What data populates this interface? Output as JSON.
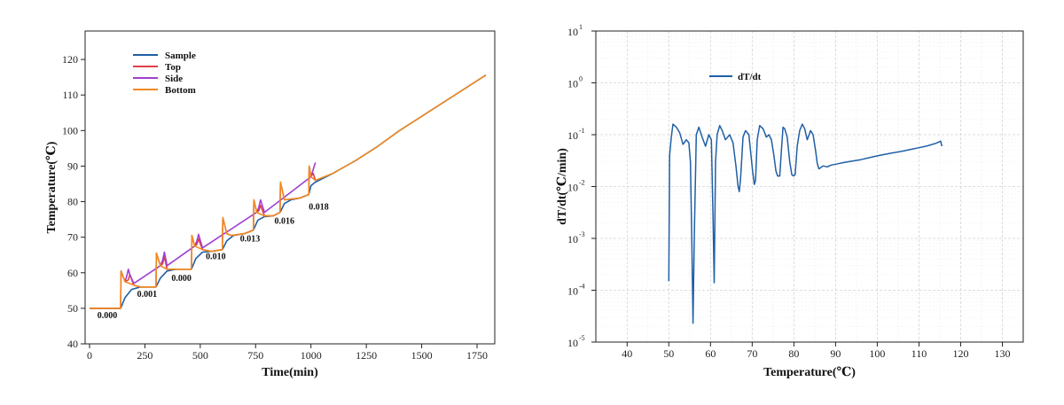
{
  "chart_data": [
    {
      "type": "line",
      "xlabel": "Time(min)",
      "ylabel": "Temperature(℃)",
      "xlim": [
        -20,
        1830
      ],
      "ylim": [
        40,
        128
      ],
      "xticks": [
        0,
        250,
        500,
        750,
        1000,
        1250,
        1500,
        1750
      ],
      "yticks": [
        40,
        50,
        60,
        70,
        80,
        90,
        100,
        110,
        120
      ],
      "grid": false,
      "legend": "top-left",
      "series": [
        {
          "name": "Sample",
          "color": "#1f5fa6",
          "x": [
            0,
            140,
            160,
            190,
            230,
            300,
            320,
            350,
            390,
            460,
            480,
            510,
            550,
            600,
            620,
            650,
            700,
            740,
            760,
            790,
            830,
            860,
            880,
            910,
            950,
            990,
            1000,
            1020,
            1100,
            1200,
            1300,
            1400,
            1500,
            1600,
            1700,
            1790
          ],
          "y": [
            50,
            50,
            53,
            55.3,
            56,
            56,
            58.5,
            60.5,
            61,
            61,
            64,
            65.8,
            66,
            66.5,
            69,
            70.5,
            71,
            72,
            74.8,
            75.8,
            76,
            77,
            79.5,
            80.5,
            81,
            82,
            84.5,
            85.5,
            88,
            91.5,
            95.5,
            100,
            104,
            108,
            112,
            115.6
          ]
        },
        {
          "name": "Top",
          "color": "#e0404a",
          "x": [
            0,
            140,
            142,
            160,
            175,
            182,
            200,
            230,
            300,
            302,
            320,
            330,
            338,
            350,
            390,
            460,
            462,
            475,
            485,
            492,
            510,
            550,
            600,
            602,
            620,
            640,
            700,
            740,
            742,
            755,
            765,
            772,
            790,
            830,
            860,
            862,
            880,
            950,
            990,
            992,
            1000,
            1010,
            1020
          ],
          "y": [
            50,
            50,
            60.5,
            57.5,
            58,
            59.5,
            56.5,
            56,
            56,
            65.5,
            62,
            62.5,
            64.5,
            61,
            61,
            61,
            70.5,
            67.5,
            68,
            69.5,
            66.5,
            66,
            66.5,
            75.5,
            71,
            70.5,
            71,
            72,
            80.5,
            77,
            77.5,
            79,
            76,
            76,
            77,
            85.5,
            80.5,
            81,
            82,
            90,
            87,
            88,
            86
          ]
        },
        {
          "name": "Side",
          "color": "#a040d0",
          "x": [
            160,
            168,
            175,
            182,
            200,
            320,
            330,
            338,
            350,
            475,
            485,
            492,
            510,
            755,
            765,
            772,
            790,
            1000,
            1010,
            1020
          ],
          "y": [
            57.5,
            59,
            61,
            59.5,
            57,
            62,
            63.5,
            65.8,
            62,
            67.5,
            69,
            70.8,
            67,
            77,
            78.5,
            80.5,
            77,
            87,
            89,
            91
          ]
        },
        {
          "name": "Bottom",
          "color": "#f08a20",
          "x": [
            0,
            140,
            142,
            160,
            200,
            230,
            300,
            302,
            320,
            350,
            390,
            460,
            462,
            475,
            510,
            550,
            600,
            602,
            620,
            640,
            700,
            740,
            742,
            755,
            790,
            830,
            860,
            862,
            880,
            950,
            990,
            992,
            1000,
            1020,
            1100,
            1200,
            1300,
            1400,
            1500,
            1600,
            1700,
            1790
          ],
          "y": [
            50,
            50,
            60.5,
            57.5,
            56.5,
            56,
            56,
            65.5,
            62,
            61,
            61,
            61,
            70.5,
            67.5,
            66.5,
            66,
            66.5,
            75.5,
            71,
            70.5,
            71,
            72,
            80.5,
            77,
            76,
            76,
            77,
            85.5,
            80.5,
            81,
            82,
            90,
            87,
            86,
            88,
            91.5,
            95.5,
            100,
            104,
            108,
            112,
            115.6
          ]
        }
      ],
      "annotations": [
        {
          "text": "0.000",
          "x": 80,
          "y": 48
        },
        {
          "text": "0.001",
          "x": 260,
          "y": 54
        },
        {
          "text": "0.000",
          "x": 415,
          "y": 58.5
        },
        {
          "text": "0.010",
          "x": 570,
          "y": 64.5
        },
        {
          "text": "0.013",
          "x": 725,
          "y": 69.5
        },
        {
          "text": "0.016",
          "x": 880,
          "y": 74.5
        },
        {
          "text": "0.018",
          "x": 1035,
          "y": 78.5
        }
      ]
    },
    {
      "type": "line",
      "xlabel": "Temperature(℃)",
      "ylabel": "dT/dt(℃/min)",
      "scale_y": "log",
      "xlim": [
        32.5,
        135
      ],
      "ylim": [
        1e-05,
        10
      ],
      "xticks": [
        40,
        50,
        60,
        70,
        80,
        90,
        100,
        110,
        120,
        130
      ],
      "yticks": [
        1e-05,
        0.0001,
        0.001,
        0.01,
        0.1,
        1,
        10
      ],
      "ytick_labels": [
        [
          "10",
          "-5"
        ],
        [
          "10",
          "-4"
        ],
        [
          "10",
          "-3"
        ],
        [
          "10",
          "-2"
        ],
        [
          "10",
          "-1"
        ],
        [
          "10",
          "0"
        ],
        [
          "10",
          "1"
        ]
      ],
      "grid": true,
      "legend": "top-left",
      "series": [
        {
          "name": "dT/dt",
          "color": "#1f5fa6",
          "x": [
            50,
            50.2,
            50.6,
            51,
            51.8,
            52.6,
            53.4,
            54.2,
            54.8,
            55.2,
            55.5,
            55.8,
            56.1,
            56.6,
            57.2,
            58,
            58.8,
            59.6,
            60.2,
            60.6,
            60.9,
            61.2,
            61.6,
            62.2,
            62.8,
            63.6,
            64.6,
            65.4,
            66.1,
            66.6,
            66.9,
            67.2,
            67.8,
            68.4,
            69.2,
            70.1,
            70.5,
            70.8,
            71.2,
            71.8,
            72.6,
            73.4,
            74,
            74.6,
            75.2,
            75.7,
            76.1,
            76.6,
            77,
            77.4,
            77.8,
            78.4,
            79,
            79.5,
            79.9,
            80.3,
            80.8,
            81.4,
            82,
            82.6,
            83.2,
            84,
            84.6,
            85.2,
            85.6,
            86,
            86.4,
            87,
            88,
            89,
            90,
            92,
            94,
            96,
            98,
            100,
            102,
            104,
            106,
            108,
            110,
            112,
            114,
            115.2,
            115.5
          ],
          "y": [
            0.00015,
            0.04,
            0.09,
            0.16,
            0.14,
            0.11,
            0.065,
            0.08,
            0.07,
            0.03,
            0.001,
            2.3e-05,
            0.001,
            0.1,
            0.14,
            0.09,
            0.06,
            0.1,
            0.08,
            0.003,
            0.00014,
            0.03,
            0.1,
            0.15,
            0.12,
            0.08,
            0.1,
            0.07,
            0.025,
            0.01,
            0.008,
            0.014,
            0.09,
            0.12,
            0.1,
            0.02,
            0.011,
            0.013,
            0.08,
            0.15,
            0.13,
            0.09,
            0.1,
            0.08,
            0.04,
            0.02,
            0.016,
            0.016,
            0.05,
            0.14,
            0.13,
            0.09,
            0.03,
            0.017,
            0.016,
            0.017,
            0.06,
            0.12,
            0.16,
            0.13,
            0.08,
            0.12,
            0.1,
            0.05,
            0.028,
            0.022,
            0.023,
            0.025,
            0.024,
            0.026,
            0.027,
            0.029,
            0.031,
            0.033,
            0.036,
            0.039,
            0.042,
            0.045,
            0.048,
            0.052,
            0.056,
            0.061,
            0.068,
            0.075,
            0.06
          ]
        }
      ]
    }
  ]
}
